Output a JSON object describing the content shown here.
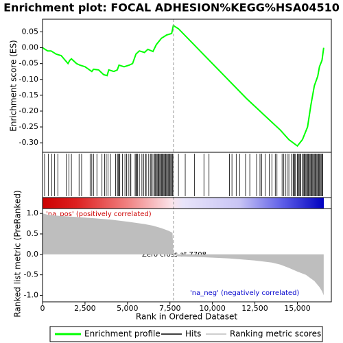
{
  "chart_data": [
    {
      "type": "line",
      "title": "Enrichment plot: FOCAL ADHESION%KEGG%HSA04510",
      "ylabel": "Enrichment score (ES)",
      "xlim": [
        0,
        17000
      ],
      "ylim": [
        -0.33,
        0.09
      ],
      "yticks": [
        0.05,
        {
          "value": 0,
          "label": "0.00"
        },
        -0.05,
        {
          "value": -0.1,
          "label": "-0.10"
        },
        -0.15,
        {
          "value": -0.2,
          "label": "-0.20"
        },
        -0.25,
        {
          "value": -0.3,
          "label": "-0.30"
        }
      ],
      "series": [
        {
          "name": "Enrichment profile",
          "color": "#00ff00",
          "x": [
            0,
            300,
            500,
            800,
            1100,
            1500,
            1600,
            1700,
            2000,
            2200,
            2500,
            2900,
            3000,
            3300,
            3600,
            3800,
            3900,
            4200,
            4400,
            4500,
            4800,
            5100,
            5300,
            5500,
            5700,
            6000,
            6200,
            6500,
            6700,
            7000,
            7300,
            7600,
            7700,
            8000,
            10000,
            12000,
            14000,
            14500,
            15000,
            15300,
            15600,
            15800,
            16000,
            16200,
            16300,
            16450,
            16550
          ],
          "values": [
            0.0,
            -0.01,
            -0.01,
            -0.02,
            -0.025,
            -0.05,
            -0.04,
            -0.035,
            -0.05,
            -0.055,
            -0.06,
            -0.075,
            -0.068,
            -0.07,
            -0.085,
            -0.088,
            -0.07,
            -0.075,
            -0.07,
            -0.055,
            -0.06,
            -0.055,
            -0.05,
            -0.02,
            -0.01,
            -0.015,
            -0.005,
            -0.012,
            0.01,
            0.03,
            0.04,
            0.045,
            0.07,
            0.06,
            -0.05,
            -0.16,
            -0.26,
            -0.29,
            -0.31,
            -0.29,
            -0.25,
            -0.18,
            -0.12,
            -0.09,
            -0.06,
            -0.04,
            0.0
          ]
        }
      ]
    },
    {
      "type": "hits",
      "xlim": [
        0,
        17000
      ],
      "series": [
        {
          "name": "Hits",
          "color": "#000000",
          "x": [
            120,
            350,
            550,
            700,
            900,
            1400,
            1550,
            1700,
            2150,
            2300,
            2800,
            2900,
            3000,
            3200,
            3500,
            3650,
            3750,
            3850,
            4000,
            4300,
            4400,
            4450,
            4500,
            4550,
            4700,
            4850,
            4950,
            5050,
            5150,
            5200,
            5450,
            5500,
            5550,
            5600,
            5700,
            5850,
            5950,
            6050,
            6100,
            6250,
            6350,
            6400,
            6500,
            6600,
            6650,
            6700,
            6750,
            6800,
            6850,
            6900,
            6950,
            7000,
            7050,
            7100,
            7150,
            7200,
            7250,
            7300,
            7350,
            7400,
            7450,
            7500,
            7550,
            7600,
            7650,
            7700,
            8000,
            8400,
            8950,
            9500,
            9800,
            11000,
            11150,
            11400,
            11600,
            11950,
            12200,
            12600,
            12800,
            12900,
            13100,
            13350,
            13500,
            13700,
            13800,
            14100,
            14200,
            14300,
            14400,
            14500,
            14650,
            14750,
            14800,
            14850,
            14900,
            15000,
            15050,
            15100,
            15150,
            15200,
            15300,
            15350,
            15400,
            15450,
            15500,
            15550,
            15600,
            15650,
            15700,
            15750,
            15800,
            15850,
            15900,
            15950,
            16000,
            16050,
            16100,
            16150,
            16200,
            16250,
            16300,
            16350,
            16400,
            16450,
            16500
          ]
        }
      ]
    },
    {
      "type": "area",
      "xlabel": "Rank in Ordered Dataset",
      "ylabel": "Ranked list metric (PreRanked)",
      "xlim": [
        0,
        17000
      ],
      "ylim": [
        -1.16,
        1.12
      ],
      "xticks": [
        0,
        {
          "value": 2500,
          "label": "2,500"
        },
        {
          "value": 5000,
          "label": "5,000"
        },
        {
          "value": 7500,
          "label": "7,500"
        },
        {
          "value": 10000,
          "label": "10,000"
        },
        {
          "value": 12500,
          "label": "12,500"
        },
        {
          "value": 15000,
          "label": "15,000"
        }
      ],
      "yticks": [
        {
          "value": 1,
          "label": "1.0"
        },
        0.5,
        {
          "value": 0,
          "label": "0.0"
        },
        -0.5,
        {
          "value": -1,
          "label": "-1.0"
        }
      ],
      "zero_cross": 7708,
      "annotations": [
        "'na_pos' (positively correlated)",
        "Zero cross at 7708",
        "'na_neg' (negatively correlated)"
      ],
      "series": [
        {
          "name": "Ranking metric scores",
          "color": "#bebebe",
          "x": [
            0,
            300,
            1000,
            2500,
            4000,
            5000,
            6000,
            6500,
            7000,
            7400,
            7650,
            7708,
            8000,
            9500,
            11000,
            12500,
            13500,
            14000,
            14500,
            15000,
            15500,
            16000,
            16300,
            16450,
            16550
          ],
          "values": [
            1.0,
            0.97,
            0.94,
            0.9,
            0.85,
            0.8,
            0.74,
            0.7,
            0.64,
            0.58,
            0.53,
            0.0,
            -0.05,
            -0.07,
            -0.1,
            -0.15,
            -0.2,
            -0.25,
            -0.33,
            -0.42,
            -0.5,
            -0.65,
            -0.8,
            -0.9,
            -1.0
          ]
        }
      ]
    }
  ]
}
